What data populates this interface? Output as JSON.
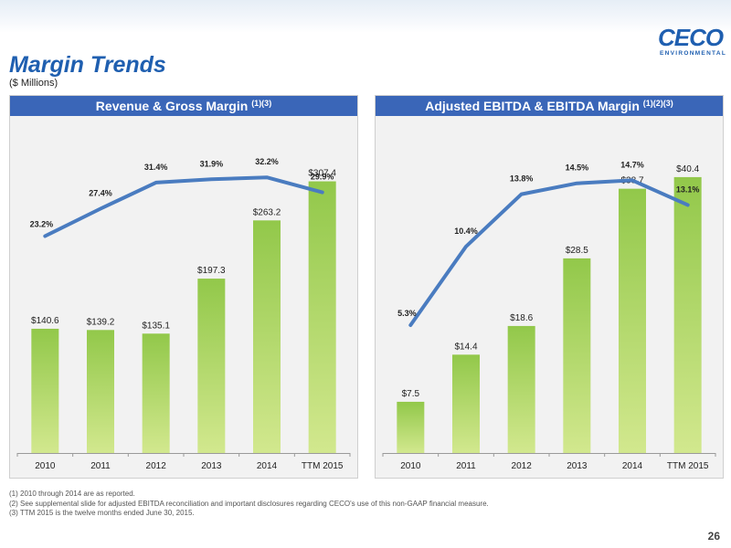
{
  "brand": {
    "name": "CECO",
    "tagline": "ENVIRONMENTAL"
  },
  "page": {
    "title": "Margin Trends",
    "units": "($ Millions)",
    "number": "26"
  },
  "footnotes": [
    "(1)  2010 through 2014 are as reported.",
    "(2)  See supplemental slide for adjusted EBITDA reconciliation and important disclosures regarding CECO's use of this non-GAAP financial measure.",
    "(3)  TTM  2015 is the twelve months ended June 30, 2015."
  ],
  "colors": {
    "title_blue": "#1f5fb0",
    "header_blue": "#3a66b8",
    "line_blue": "#4a7cc0",
    "bar_top": "#92c84a",
    "bar_bottom": "#d2e88e",
    "panel_bg": "#f2f2f2"
  },
  "chart_data": [
    {
      "type": "bar",
      "title": "Revenue & Gross Margin",
      "title_sup": "(1)(3)",
      "categories": [
        "2010",
        "2011",
        "2012",
        "2013",
        "2014",
        "TTM 2015"
      ],
      "series": [
        {
          "values": [
            140.6,
            139.2,
            135.1,
            197.3,
            263.2,
            307.4
          ],
          "labels": [
            "$140.6",
            "$139.2",
            "$135.1",
            "$197.3",
            "$263.2",
            "$307.4"
          ]
        },
        {
          "type": "line",
          "values": [
            23.2,
            27.4,
            31.4,
            31.9,
            32.2,
            29.9
          ],
          "labels": [
            "23.2%",
            "27.4%",
            "31.4%",
            "31.9%",
            "32.2%",
            "29.9%"
          ]
        }
      ],
      "bar_ylim": [
        0,
        340
      ],
      "line_ylim": [
        -10,
        36
      ],
      "grid": false
    },
    {
      "type": "bar",
      "title": "Adjusted EBITDA & EBITDA Margin",
      "title_sup": "(1)(2)(3)",
      "categories": [
        "2010",
        "2011",
        "2012",
        "2013",
        "2014",
        "TTM 2015"
      ],
      "series": [
        {
          "values": [
            7.5,
            14.4,
            18.6,
            28.5,
            38.7,
            40.4
          ],
          "labels": [
            "$7.5",
            "$14.4",
            "$18.6",
            "$28.5",
            "$38.7",
            "$40.4"
          ]
        },
        {
          "type": "line",
          "values": [
            5.3,
            10.4,
            13.8,
            14.5,
            14.7,
            13.1
          ],
          "labels": [
            "5.3%",
            "10.4%",
            "13.8%",
            "14.5%",
            "14.7%",
            "13.1%"
          ]
        }
      ],
      "bar_ylim": [
        0,
        44
      ],
      "line_ylim": [
        -3,
        16.5
      ],
      "grid": false
    }
  ]
}
